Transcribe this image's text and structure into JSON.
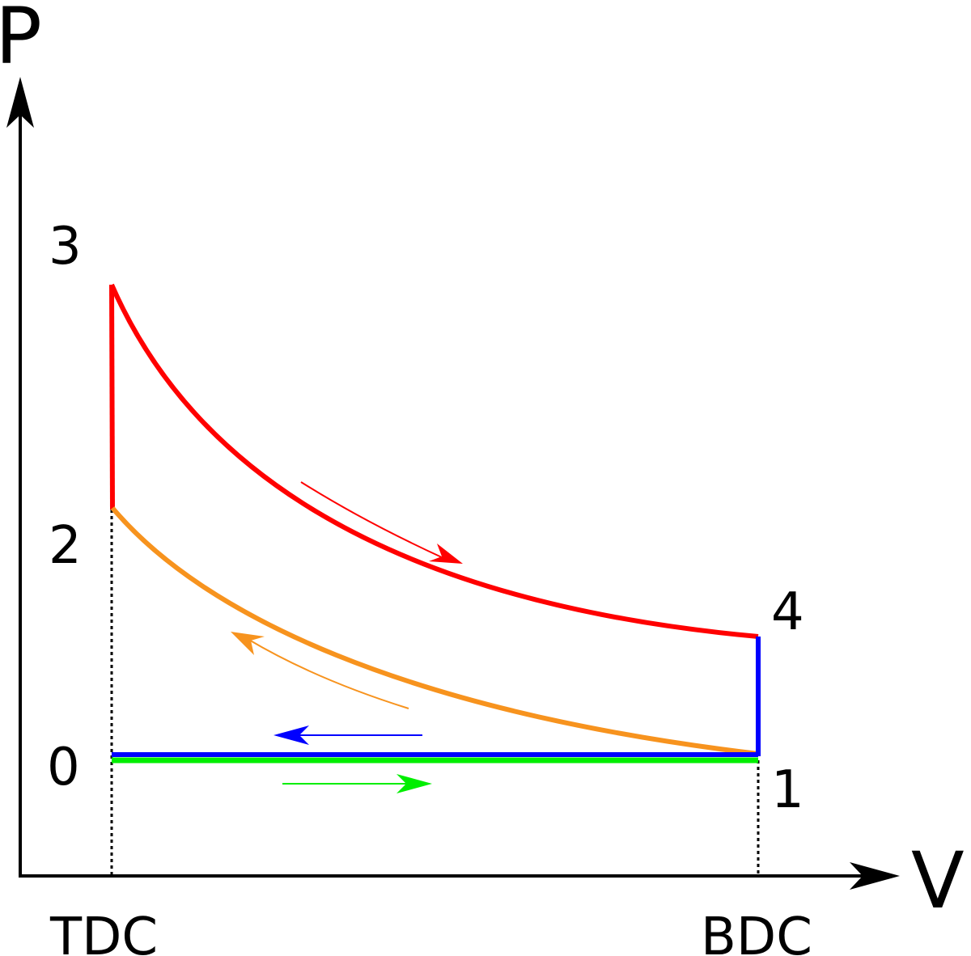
{
  "axes": {
    "y_label": "P",
    "x_label": "V"
  },
  "points": {
    "p0": "0",
    "p1": "1",
    "p2": "2",
    "p3": "3",
    "p4": "4"
  },
  "positions": {
    "tdc": "TDC",
    "bdc": "BDC"
  },
  "colors": {
    "expansion": "#ff0000",
    "compression": "#f7931e",
    "exhaust": "#0000ff",
    "intake": "#00ee00",
    "axes": "#000000"
  }
}
